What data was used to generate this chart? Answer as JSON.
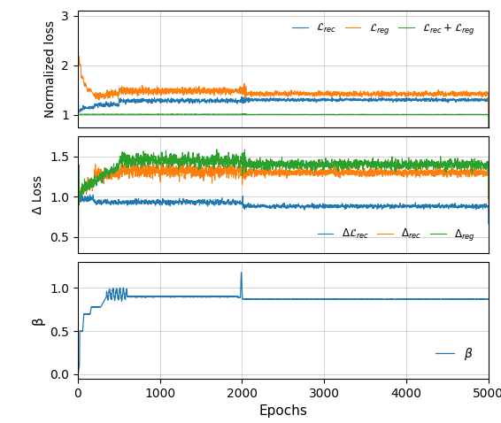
{
  "xlabel": "Epochs",
  "ylabel1": "Normalized loss",
  "ylabel2": "Δ Loss",
  "ylabel3": "β",
  "xlim": [
    0,
    5000
  ],
  "ylim1": [
    0.75,
    3.1
  ],
  "ylim2": [
    0.3,
    1.75
  ],
  "ylim3": [
    -0.05,
    1.3
  ],
  "yticks1": [
    1,
    2,
    3
  ],
  "yticks2": [
    0.5,
    1.0,
    1.5
  ],
  "yticks3": [
    0.0,
    0.5,
    1.0
  ],
  "xticks": [
    0,
    1000,
    2000,
    3000,
    4000,
    5000
  ],
  "color_blue": "#1f77b4",
  "color_orange": "#ff7f0e",
  "color_green": "#2ca02c",
  "legend1_labels": [
    "$\\mathcal{L}_{rec}$",
    "$\\mathcal{L}_{reg}$",
    "$\\mathcal{L}_{rec} + \\mathcal{L}_{reg}$"
  ],
  "legend2_labels": [
    "$\\Delta\\mathcal{L}_{rec}$",
    "$\\Delta_{rec}$",
    "$\\Delta_{reg}$"
  ],
  "legend3_labels": [
    "$\\beta$"
  ],
  "figsize": [
    5.66,
    4.78
  ],
  "dpi": 100
}
